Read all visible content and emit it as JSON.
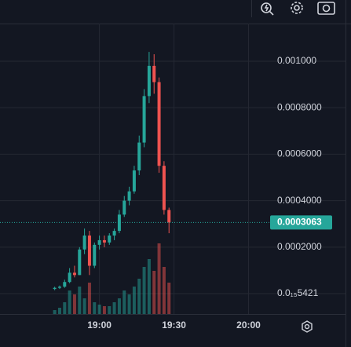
{
  "chart_data": {
    "type": "candlestick",
    "x": [
      "18:42",
      "18:44",
      "18:46",
      "18:48",
      "18:50",
      "18:52",
      "18:54",
      "18:56",
      "18:58",
      "19:00",
      "19:02",
      "19:04",
      "19:06",
      "19:08",
      "19:10",
      "19:12",
      "19:14",
      "19:16",
      "19:18",
      "19:20",
      "19:22",
      "19:24",
      "19:26",
      "19:28"
    ],
    "open": [
      2e-05,
      2.5e-05,
      3e-05,
      5e-05,
      9e-05,
      8e-05,
      0.00019,
      0.00025,
      0.00012,
      0.00021,
      0.00023,
      0.00022,
      0.00025,
      0.00027,
      0.00034,
      0.0004,
      0.00044,
      0.00053,
      0.00065,
      0.00085,
      0.00098,
      0.00091,
      0.00055,
      0.00036
    ],
    "high": [
      3e-05,
      3.5e-05,
      6e-05,
      0.00011,
      0.00012,
      0.0002,
      0.00028,
      0.00027,
      0.00022,
      0.00025,
      0.00025,
      0.00026,
      0.00028,
      0.00036,
      0.00042,
      0.00046,
      0.00055,
      0.00068,
      0.00088,
      0.00104,
      0.00103,
      0.00093,
      0.00057,
      0.00037
    ],
    "low": [
      1.5e-05,
      2e-05,
      2.5e-05,
      4.5e-05,
      7e-05,
      8e-05,
      0.00017,
      8e-05,
      0.00011,
      0.00019,
      0.0002,
      0.00021,
      0.00023,
      0.00026,
      0.00033,
      0.00038,
      0.00043,
      0.00051,
      0.00063,
      0.00082,
      0.00086,
      0.00052,
      0.00034,
      0.00026
    ],
    "close": [
      2.5e-05,
      3e-05,
      5e-05,
      9e-05,
      8e-05,
      0.00019,
      0.00025,
      0.00012,
      0.00021,
      0.00023,
      0.00022,
      0.00025,
      0.00027,
      0.00034,
      0.0004,
      0.00044,
      0.00053,
      0.00065,
      0.00085,
      0.00098,
      0.00091,
      0.00055,
      0.00036,
      0.0003063
    ],
    "volume": [
      5,
      8,
      15,
      30,
      25,
      35,
      20,
      40,
      15,
      12,
      10,
      10,
      15,
      20,
      30,
      25,
      35,
      45,
      60,
      70,
      55,
      90,
      60,
      40
    ],
    "up_color": "#26a69a",
    "down_color": "#ef5350",
    "xlim": [
      "18:20",
      "20:09"
    ],
    "xticks": [
      "19:00",
      "19:30",
      "20:00"
    ],
    "ylim": [
      -8.77e-05,
      0.001162
    ],
    "yticks": [
      {
        "value": 5.421e-17,
        "label": "0.0₁₅5421"
      },
      {
        "value": 0.0002,
        "label": "0.0002000"
      },
      {
        "value": 0.0004,
        "label": "0.0004000"
      },
      {
        "value": 0.0006,
        "label": "0.0006000"
      },
      {
        "value": 0.0008,
        "label": "0.0008000"
      },
      {
        "value": 0.001,
        "label": "0.001000"
      }
    ],
    "grid": true
  }
}
